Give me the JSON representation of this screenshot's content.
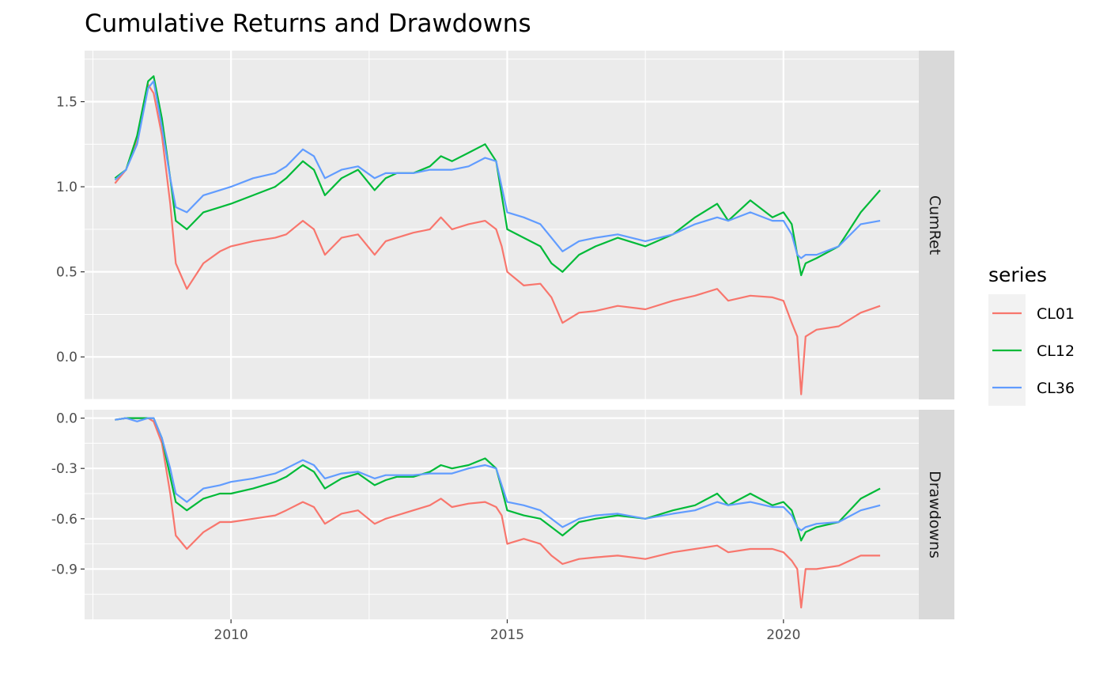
{
  "chart_data": {
    "type": "line",
    "title": "Cumulative Returns and Drawdowns",
    "xlabel": "",
    "ylabel": "",
    "xlim": [
      2007.35,
      2022.45
    ],
    "x_ticks": [
      2010,
      2015,
      2020
    ],
    "x_tick_labels": [
      "2010",
      "2015",
      "2020"
    ],
    "legend": {
      "title": "series",
      "position": "right"
    },
    "series_colors": {
      "CL01": "#F8766D",
      "CL12": "#00BA38",
      "CL36": "#619CFF"
    },
    "grid": true,
    "panels": [
      {
        "strip": "CumRet",
        "ylim": [
          -0.25,
          1.8
        ],
        "y_ticks": [
          0.0,
          0.5,
          1.0,
          1.5
        ],
        "y_tick_labels": [
          "0.0",
          "0.5",
          "1.0",
          "1.5"
        ],
        "series": [
          {
            "name": "CL01",
            "x": [
              2007.9,
              2008.1,
              2008.3,
              2008.5,
              2008.6,
              2008.75,
              2008.9,
              2009.0,
              2009.2,
              2009.5,
              2009.8,
              2010.0,
              2010.4,
              2010.8,
              2011.0,
              2011.3,
              2011.5,
              2011.7,
              2012.0,
              2012.3,
              2012.6,
              2012.8,
              2013.0,
              2013.3,
              2013.6,
              2013.8,
              2014.0,
              2014.3,
              2014.6,
              2014.8,
              2014.9,
              2015.0,
              2015.3,
              2015.6,
              2015.8,
              2016.0,
              2016.3,
              2016.6,
              2017.0,
              2017.5,
              2018.0,
              2018.4,
              2018.8,
              2019.0,
              2019.4,
              2019.8,
              2020.0,
              2020.15,
              2020.25,
              2020.32,
              2020.4,
              2020.6,
              2021.0,
              2021.4,
              2021.75
            ],
            "values": [
              1.02,
              1.1,
              1.28,
              1.6,
              1.55,
              1.3,
              0.9,
              0.55,
              0.4,
              0.55,
              0.62,
              0.65,
              0.68,
              0.7,
              0.72,
              0.8,
              0.75,
              0.6,
              0.7,
              0.72,
              0.6,
              0.68,
              0.7,
              0.73,
              0.75,
              0.82,
              0.75,
              0.78,
              0.8,
              0.75,
              0.65,
              0.5,
              0.42,
              0.43,
              0.35,
              0.2,
              0.26,
              0.27,
              0.3,
              0.28,
              0.33,
              0.36,
              0.4,
              0.33,
              0.36,
              0.35,
              0.33,
              0.2,
              0.12,
              -0.22,
              0.12,
              0.16,
              0.18,
              0.26,
              0.3
            ]
          },
          {
            "name": "CL12",
            "x": [
              2007.9,
              2008.1,
              2008.3,
              2008.5,
              2008.6,
              2008.75,
              2008.9,
              2009.0,
              2009.2,
              2009.5,
              2009.8,
              2010.0,
              2010.4,
              2010.8,
              2011.0,
              2011.3,
              2011.5,
              2011.7,
              2012.0,
              2012.3,
              2012.6,
              2012.8,
              2013.0,
              2013.3,
              2013.6,
              2013.8,
              2014.0,
              2014.3,
              2014.6,
              2014.8,
              2014.9,
              2015.0,
              2015.3,
              2015.6,
              2015.8,
              2016.0,
              2016.3,
              2016.6,
              2017.0,
              2017.5,
              2018.0,
              2018.4,
              2018.8,
              2019.0,
              2019.4,
              2019.8,
              2020.0,
              2020.15,
              2020.25,
              2020.32,
              2020.4,
              2020.6,
              2021.0,
              2021.4,
              2021.75
            ],
            "values": [
              1.05,
              1.1,
              1.3,
              1.62,
              1.65,
              1.4,
              1.05,
              0.8,
              0.75,
              0.85,
              0.88,
              0.9,
              0.95,
              1.0,
              1.05,
              1.15,
              1.1,
              0.95,
              1.05,
              1.1,
              0.98,
              1.05,
              1.08,
              1.08,
              1.12,
              1.18,
              1.15,
              1.2,
              1.25,
              1.15,
              0.95,
              0.75,
              0.7,
              0.65,
              0.55,
              0.5,
              0.6,
              0.65,
              0.7,
              0.65,
              0.72,
              0.82,
              0.9,
              0.8,
              0.92,
              0.82,
              0.85,
              0.78,
              0.6,
              0.48,
              0.55,
              0.58,
              0.65,
              0.85,
              0.98
            ]
          },
          {
            "name": "CL36",
            "x": [
              2007.9,
              2008.1,
              2008.3,
              2008.5,
              2008.6,
              2008.75,
              2008.9,
              2009.0,
              2009.2,
              2009.5,
              2009.8,
              2010.0,
              2010.4,
              2010.8,
              2011.0,
              2011.3,
              2011.5,
              2011.7,
              2012.0,
              2012.3,
              2012.6,
              2012.8,
              2013.0,
              2013.3,
              2013.6,
              2013.8,
              2014.0,
              2014.3,
              2014.6,
              2014.8,
              2014.9,
              2015.0,
              2015.3,
              2015.6,
              2015.8,
              2016.0,
              2016.3,
              2016.6,
              2017.0,
              2017.5,
              2018.0,
              2018.4,
              2018.8,
              2019.0,
              2019.4,
              2019.8,
              2020.0,
              2020.15,
              2020.25,
              2020.32,
              2020.4,
              2020.6,
              2021.0,
              2021.4,
              2021.75
            ],
            "values": [
              1.04,
              1.1,
              1.25,
              1.58,
              1.62,
              1.35,
              1.05,
              0.88,
              0.85,
              0.95,
              0.98,
              1.0,
              1.05,
              1.08,
              1.12,
              1.22,
              1.18,
              1.05,
              1.1,
              1.12,
              1.05,
              1.08,
              1.08,
              1.08,
              1.1,
              1.1,
              1.1,
              1.12,
              1.17,
              1.15,
              1.0,
              0.85,
              0.82,
              0.78,
              0.7,
              0.62,
              0.68,
              0.7,
              0.72,
              0.68,
              0.72,
              0.78,
              0.82,
              0.8,
              0.85,
              0.8,
              0.8,
              0.72,
              0.6,
              0.58,
              0.6,
              0.6,
              0.65,
              0.78,
              0.8
            ]
          }
        ]
      },
      {
        "strip": "Drawdowns",
        "ylim": [
          -1.2,
          0.05
        ],
        "y_ticks": [
          -0.9,
          -0.6,
          -0.3,
          0.0
        ],
        "y_tick_labels": [
          "-0.9",
          "-0.6",
          "-0.3",
          "0.0"
        ],
        "series": [
          {
            "name": "CL01",
            "x": [
              2007.9,
              2008.1,
              2008.3,
              2008.5,
              2008.6,
              2008.75,
              2008.9,
              2009.0,
              2009.2,
              2009.5,
              2009.8,
              2010.0,
              2010.4,
              2010.8,
              2011.0,
              2011.3,
              2011.5,
              2011.7,
              2012.0,
              2012.3,
              2012.6,
              2012.8,
              2013.0,
              2013.3,
              2013.6,
              2013.8,
              2014.0,
              2014.3,
              2014.6,
              2014.8,
              2014.9,
              2015.0,
              2015.3,
              2015.6,
              2015.8,
              2016.0,
              2016.3,
              2016.6,
              2017.0,
              2017.5,
              2018.0,
              2018.4,
              2018.8,
              2019.0,
              2019.4,
              2019.8,
              2020.0,
              2020.15,
              2020.25,
              2020.32,
              2020.4,
              2020.6,
              2021.0,
              2021.4,
              2021.75
            ],
            "values": [
              -0.01,
              0.0,
              0.0,
              0.0,
              -0.02,
              -0.15,
              -0.45,
              -0.7,
              -0.78,
              -0.68,
              -0.62,
              -0.62,
              -0.6,
              -0.58,
              -0.55,
              -0.5,
              -0.53,
              -0.63,
              -0.57,
              -0.55,
              -0.63,
              -0.6,
              -0.58,
              -0.55,
              -0.52,
              -0.48,
              -0.53,
              -0.51,
              -0.5,
              -0.53,
              -0.58,
              -0.75,
              -0.72,
              -0.75,
              -0.82,
              -0.87,
              -0.84,
              -0.83,
              -0.82,
              -0.84,
              -0.8,
              -0.78,
              -0.76,
              -0.8,
              -0.78,
              -0.78,
              -0.8,
              -0.85,
              -0.9,
              -1.13,
              -0.9,
              -0.9,
              -0.88,
              -0.82,
              -0.82
            ]
          },
          {
            "name": "CL12",
            "x": [
              2007.9,
              2008.1,
              2008.3,
              2008.5,
              2008.6,
              2008.75,
              2008.9,
              2009.0,
              2009.2,
              2009.5,
              2009.8,
              2010.0,
              2010.4,
              2010.8,
              2011.0,
              2011.3,
              2011.5,
              2011.7,
              2012.0,
              2012.3,
              2012.6,
              2012.8,
              2013.0,
              2013.3,
              2013.6,
              2013.8,
              2014.0,
              2014.3,
              2014.6,
              2014.8,
              2014.9,
              2015.0,
              2015.3,
              2015.6,
              2015.8,
              2016.0,
              2016.3,
              2016.6,
              2017.0,
              2017.5,
              2018.0,
              2018.4,
              2018.8,
              2019.0,
              2019.4,
              2019.8,
              2020.0,
              2020.15,
              2020.25,
              2020.32,
              2020.4,
              2020.6,
              2021.0,
              2021.4,
              2021.75
            ],
            "values": [
              -0.01,
              0.0,
              0.0,
              0.0,
              0.0,
              -0.12,
              -0.35,
              -0.5,
              -0.55,
              -0.48,
              -0.45,
              -0.45,
              -0.42,
              -0.38,
              -0.35,
              -0.28,
              -0.32,
              -0.42,
              -0.36,
              -0.33,
              -0.4,
              -0.37,
              -0.35,
              -0.35,
              -0.32,
              -0.28,
              -0.3,
              -0.28,
              -0.24,
              -0.3,
              -0.42,
              -0.55,
              -0.58,
              -0.6,
              -0.65,
              -0.7,
              -0.62,
              -0.6,
              -0.58,
              -0.6,
              -0.55,
              -0.52,
              -0.45,
              -0.52,
              -0.45,
              -0.52,
              -0.5,
              -0.55,
              -0.65,
              -0.73,
              -0.68,
              -0.65,
              -0.62,
              -0.48,
              -0.42
            ]
          },
          {
            "name": "CL36",
            "x": [
              2007.9,
              2008.1,
              2008.3,
              2008.5,
              2008.6,
              2008.75,
              2008.9,
              2009.0,
              2009.2,
              2009.5,
              2009.8,
              2010.0,
              2010.4,
              2010.8,
              2011.0,
              2011.3,
              2011.5,
              2011.7,
              2012.0,
              2012.3,
              2012.6,
              2012.8,
              2013.0,
              2013.3,
              2013.6,
              2013.8,
              2014.0,
              2014.3,
              2014.6,
              2014.8,
              2014.9,
              2015.0,
              2015.3,
              2015.6,
              2015.8,
              2016.0,
              2016.3,
              2016.6,
              2017.0,
              2017.5,
              2018.0,
              2018.4,
              2018.8,
              2019.0,
              2019.4,
              2019.8,
              2020.0,
              2020.15,
              2020.25,
              2020.32,
              2020.4,
              2020.6,
              2021.0,
              2021.4,
              2021.75
            ],
            "values": [
              -0.01,
              0.0,
              -0.02,
              0.0,
              0.0,
              -0.12,
              -0.3,
              -0.45,
              -0.5,
              -0.42,
              -0.4,
              -0.38,
              -0.36,
              -0.33,
              -0.3,
              -0.25,
              -0.28,
              -0.36,
              -0.33,
              -0.32,
              -0.36,
              -0.34,
              -0.34,
              -0.34,
              -0.33,
              -0.33,
              -0.33,
              -0.3,
              -0.28,
              -0.3,
              -0.4,
              -0.5,
              -0.52,
              -0.55,
              -0.6,
              -0.65,
              -0.6,
              -0.58,
              -0.57,
              -0.6,
              -0.57,
              -0.55,
              -0.5,
              -0.52,
              -0.5,
              -0.53,
              -0.53,
              -0.58,
              -0.65,
              -0.67,
              -0.65,
              -0.63,
              -0.62,
              -0.55,
              -0.52
            ]
          }
        ]
      }
    ]
  }
}
